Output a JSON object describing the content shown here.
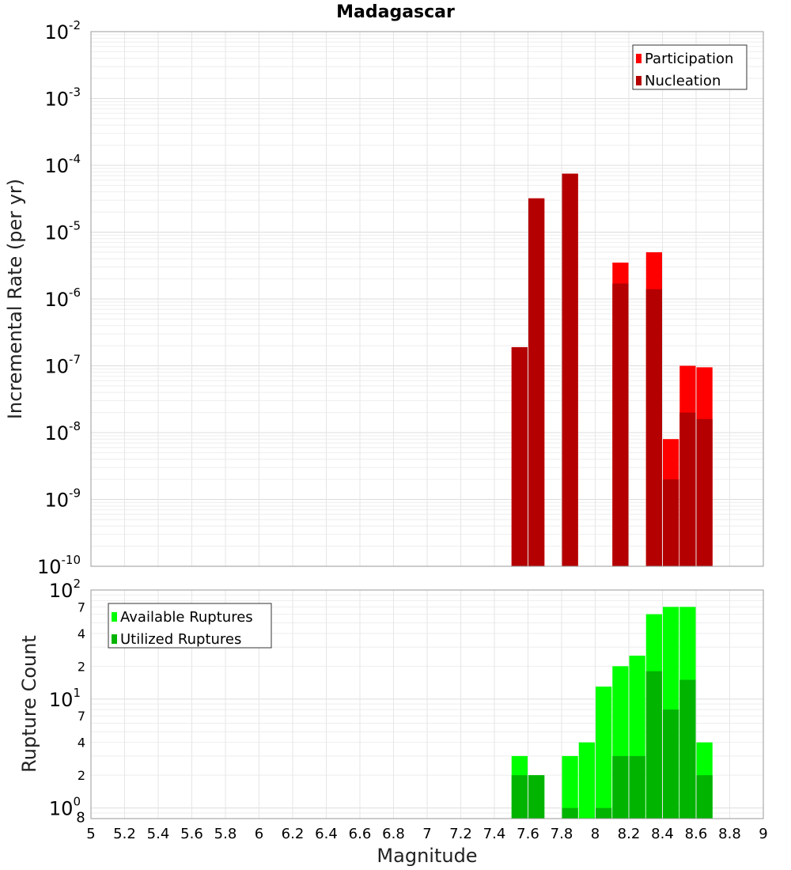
{
  "title": "Madagascar",
  "chart_data": [
    {
      "type": "bar",
      "panel": "top",
      "yscale": "log",
      "ylim": [
        1e-10,
        0.01
      ],
      "xlim": [
        5,
        9
      ],
      "ylabel": "Incremental Rate (per yr)",
      "xlabel": "Magnitude",
      "grid": true,
      "legend_position": "top-right",
      "y_ticks": [
        {
          "base": "10",
          "exp": "-10"
        },
        {
          "base": "10",
          "exp": "-9"
        },
        {
          "base": "10",
          "exp": "-8"
        },
        {
          "base": "10",
          "exp": "-7"
        },
        {
          "base": "10",
          "exp": "-6"
        },
        {
          "base": "10",
          "exp": "-5"
        },
        {
          "base": "10",
          "exp": "-4"
        },
        {
          "base": "10",
          "exp": "-3"
        },
        {
          "base": "10",
          "exp": "-2"
        }
      ],
      "x": [
        7.55,
        7.65,
        7.85,
        8.15,
        8.35,
        8.45,
        8.55,
        8.65
      ],
      "series": [
        {
          "name": "Participation",
          "color": "#ff0000",
          "values": [
            1.9e-07,
            3.2e-05,
            7.5e-05,
            3.5e-06,
            5e-06,
            8e-09,
            1e-07,
            9.5e-08
          ]
        },
        {
          "name": "Nucleation",
          "color": "#b40000",
          "values": [
            1.9e-07,
            3.2e-05,
            7.5e-05,
            1.7e-06,
            1.4e-06,
            2e-09,
            2e-08,
            1.6e-08
          ]
        }
      ]
    },
    {
      "type": "bar",
      "panel": "bottom",
      "yscale": "log",
      "ylim": [
        0.8,
        100
      ],
      "xlim": [
        5,
        9
      ],
      "ylabel": "Rupture Count",
      "xlabel": "Magnitude",
      "grid": true,
      "legend_position": "top-left",
      "y_ticks": [
        {
          "value": 1,
          "base": "10",
          "exp": "0",
          "extra": "8"
        },
        {
          "value": 2,
          "label": "2"
        },
        {
          "value": 4,
          "label": "4"
        },
        {
          "value": 7,
          "label": "7"
        },
        {
          "value": 10,
          "base": "10",
          "exp": "1"
        },
        {
          "value": 20,
          "label": "2"
        },
        {
          "value": 40,
          "label": "4"
        },
        {
          "value": 70,
          "label": "7"
        },
        {
          "value": 100,
          "base": "10",
          "exp": "2"
        }
      ],
      "x": [
        7.55,
        7.65,
        7.85,
        7.95,
        8.05,
        8.15,
        8.25,
        8.35,
        8.45,
        8.55,
        8.65
      ],
      "series": [
        {
          "name": "Available Ruptures",
          "color": "#00ff00",
          "values": [
            3,
            2,
            3,
            4,
            13,
            20,
            25,
            60,
            70,
            70,
            4
          ]
        },
        {
          "name": "Utilized Ruptures",
          "color": "#00b400",
          "values": [
            2,
            2,
            1,
            0,
            1,
            3,
            3,
            18,
            8,
            15,
            2
          ]
        }
      ]
    }
  ],
  "x_ticks": [
    "5",
    "5.2",
    "5.4",
    "5.6",
    "5.8",
    "6",
    "6.2",
    "6.4",
    "6.6",
    "6.8",
    "7",
    "7.2",
    "7.4",
    "7.6",
    "7.8",
    "8",
    "8.2",
    "8.4",
    "8.6",
    "8.8",
    "9"
  ]
}
